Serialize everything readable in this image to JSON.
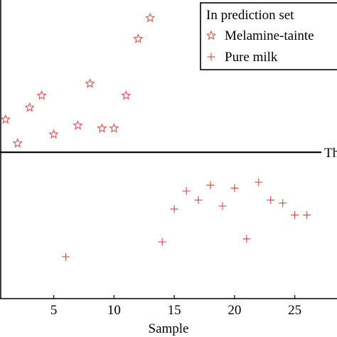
{
  "chart_data": {
    "type": "scatter",
    "title": "",
    "xlabel": "Sample",
    "ylabel": "",
    "xlim": [
      0.6,
      28.5
    ],
    "ylim": [
      0,
      1
    ],
    "x_ticks": [
      5,
      10,
      15,
      20,
      25
    ],
    "x_tick_labels": [
      "5",
      "10",
      "15",
      "20",
      "25"
    ],
    "grid": false,
    "legend": {
      "title": "In prediction set",
      "placement": "top-right",
      "entries": [
        "Melamine-tainte",
        "Pure milk"
      ]
    },
    "threshold": {
      "label": "Th",
      "y": 0.49
    },
    "series": [
      {
        "name": "Melamine-tainte",
        "marker": "star",
        "color": "#d9534f",
        "points": [
          {
            "x": 1,
            "y": 0.6
          },
          {
            "x": 2,
            "y": 0.52
          },
          {
            "x": 3,
            "y": 0.64
          },
          {
            "x": 4,
            "y": 0.68
          },
          {
            "x": 5,
            "y": 0.55
          },
          {
            "x": 7,
            "y": 0.58
          },
          {
            "x": 8,
            "y": 0.72
          },
          {
            "x": 9,
            "y": 0.57
          },
          {
            "x": 10,
            "y": 0.57
          },
          {
            "x": 11,
            "y": 0.68
          },
          {
            "x": 12,
            "y": 0.87
          },
          {
            "x": 13,
            "y": 0.94
          }
        ]
      },
      {
        "name": "Pure milk",
        "marker": "plus",
        "color": "#d9534f",
        "points": [
          {
            "x": 6,
            "y": 0.14
          },
          {
            "x": 14,
            "y": 0.19
          },
          {
            "x": 15,
            "y": 0.3
          },
          {
            "x": 16,
            "y": 0.36
          },
          {
            "x": 17,
            "y": 0.33
          },
          {
            "x": 18,
            "y": 0.38
          },
          {
            "x": 19,
            "y": 0.31
          },
          {
            "x": 20,
            "y": 0.37
          },
          {
            "x": 21,
            "y": 0.2
          },
          {
            "x": 22,
            "y": 0.39
          },
          {
            "x": 23,
            "y": 0.33
          },
          {
            "x": 24,
            "y": 0.32
          },
          {
            "x": 25,
            "y": 0.28
          },
          {
            "x": 26,
            "y": 0.28
          }
        ]
      }
    ]
  }
}
